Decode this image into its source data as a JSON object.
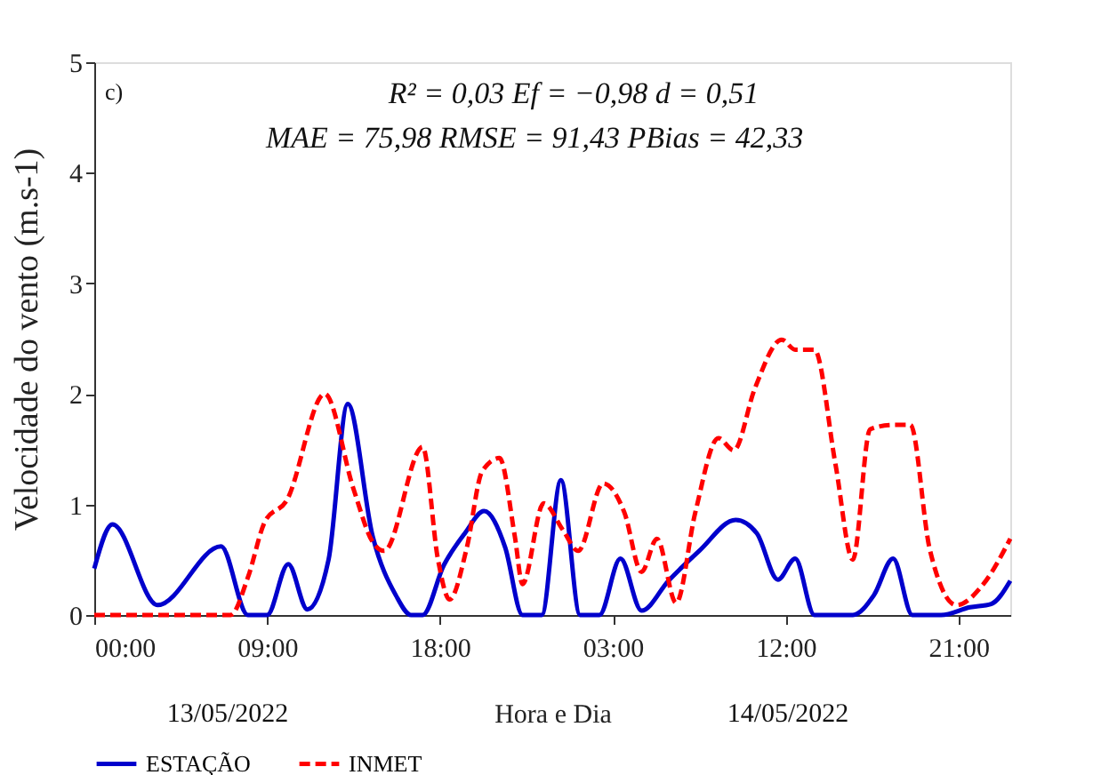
{
  "chart_data": {
    "type": "line",
    "ylabel": "Velocidade do vento (m.s-1)",
    "xlabel": "Hora e Dia",
    "xlim": [
      "2022-05-13T00:00",
      "2022-05-14T23:42"
    ],
    "xticks": [
      {
        "value": "2022-05-13T00:00",
        "label": "00:00"
      },
      {
        "value": "2022-05-13T09:00",
        "label": "09:00"
      },
      {
        "value": "2022-05-13T18:00",
        "label": "18:00"
      },
      {
        "value": "2022-05-14T03:00",
        "label": "03:00"
      },
      {
        "value": "2022-05-14T12:00",
        "label": "12:00"
      },
      {
        "value": "2022-05-14T21:00",
        "label": "21:00"
      }
    ],
    "ylim": [
      0,
      5
    ],
    "yticks": [
      0,
      1,
      2,
      3,
      4,
      5
    ],
    "grid": false,
    "legend": "bottom",
    "marker": "none",
    "annotations": [
      "c)",
      "R² = 0,03    Ef = −0,98    d = 0,51",
      "MAE = 75,98    RMSE = 91,43    PBias = 42,33",
      "13/05/2022",
      "14/05/2022"
    ],
    "series": [
      {
        "name": "ESTAÇÃO",
        "color": "#0000cc",
        "line_style": "solid",
        "x": [
          "2022-05-13T00:00",
          "2022-05-13T00:57",
          "2022-05-13T03:18",
          "2022-05-13T06:36",
          "2022-05-13T08:00",
          "2022-05-13T09:00",
          "2022-05-13T10:06",
          "2022-05-13T11:06",
          "2022-05-13T12:12",
          "2022-05-13T13:12",
          "2022-05-13T14:30",
          "2022-05-13T15:42",
          "2022-05-13T16:30",
          "2022-05-13T17:06",
          "2022-05-13T18:12",
          "2022-05-13T19:18",
          "2022-05-13T20:18",
          "2022-05-13T21:24",
          "2022-05-13T22:18",
          "2022-05-13T23:18",
          "2022-05-14T00:18",
          "2022-05-14T01:18",
          "2022-05-14T02:18",
          "2022-05-14T03:24",
          "2022-05-14T04:30",
          "2022-05-14T05:54",
          "2022-05-14T07:30",
          "2022-05-14T09:24",
          "2022-05-14T10:30",
          "2022-05-14T11:36",
          "2022-05-14T12:30",
          "2022-05-14T13:30",
          "2022-05-14T15:30",
          "2022-05-14T16:36",
          "2022-05-14T17:36",
          "2022-05-14T18:36",
          "2022-05-14T20:06",
          "2022-05-14T21:36",
          "2022-05-14T22:42",
          "2022-05-14T23:42"
        ],
        "values": [
          0.42,
          0.82,
          0.09,
          0.62,
          0,
          0,
          0.46,
          0.05,
          0.5,
          1.91,
          0.71,
          0.18,
          0,
          0,
          0.45,
          0.74,
          0.94,
          0.61,
          0,
          0,
          1.22,
          0,
          0,
          0.51,
          0.04,
          0.31,
          0.58,
          0.86,
          0.74,
          0.32,
          0.51,
          0,
          0,
          0.18,
          0.51,
          0,
          0,
          0.07,
          0.1,
          0.31
        ]
      },
      {
        "name": "INMET",
        "color": "#ff0000",
        "line_style": "dashed",
        "x": [
          "2022-05-13T00:00",
          "2022-05-13T07:06",
          "2022-05-13T08:00",
          "2022-05-13T08:54",
          "2022-05-13T10:00",
          "2022-05-13T12:00",
          "2022-05-13T13:30",
          "2022-05-13T14:30",
          "2022-05-13T15:06",
          "2022-05-13T17:06",
          "2022-05-13T17:54",
          "2022-05-13T18:30",
          "2022-05-13T19:24",
          "2022-05-13T20:12",
          "2022-05-13T21:06",
          "2022-05-13T21:54",
          "2022-05-13T22:18",
          "2022-05-13T23:24",
          "2022-05-14T00:24",
          "2022-05-14T01:12",
          "2022-05-14T02:30",
          "2022-05-14T03:36",
          "2022-05-14T04:30",
          "2022-05-14T05:18",
          "2022-05-14T06:18",
          "2022-05-14T07:18",
          "2022-05-14T08:30",
          "2022-05-14T09:18",
          "2022-05-14T10:24",
          "2022-05-14T11:48",
          "2022-05-14T12:30",
          "2022-05-14T13:30",
          "2022-05-14T14:36",
          "2022-05-14T15:30",
          "2022-05-14T16:24",
          "2022-05-14T17:36",
          "2022-05-14T18:30",
          "2022-05-14T19:30",
          "2022-05-14T20:54",
          "2022-05-14T22:18",
          "2022-05-14T23:42"
        ],
        "values": [
          0,
          0,
          0.34,
          0.85,
          1.03,
          2.0,
          1.14,
          0.66,
          0.58,
          1.52,
          0.5,
          0.14,
          0.61,
          1.3,
          1.42,
          0.71,
          0.28,
          1.01,
          0.77,
          0.58,
          1.19,
          0.93,
          0.39,
          0.69,
          0.11,
          0.93,
          1.6,
          1.49,
          2.05,
          2.49,
          2.4,
          2.4,
          1.36,
          0.5,
          1.68,
          1.72,
          1.72,
          0.6,
          0.09,
          0.28,
          0.69
        ]
      }
    ]
  }
}
